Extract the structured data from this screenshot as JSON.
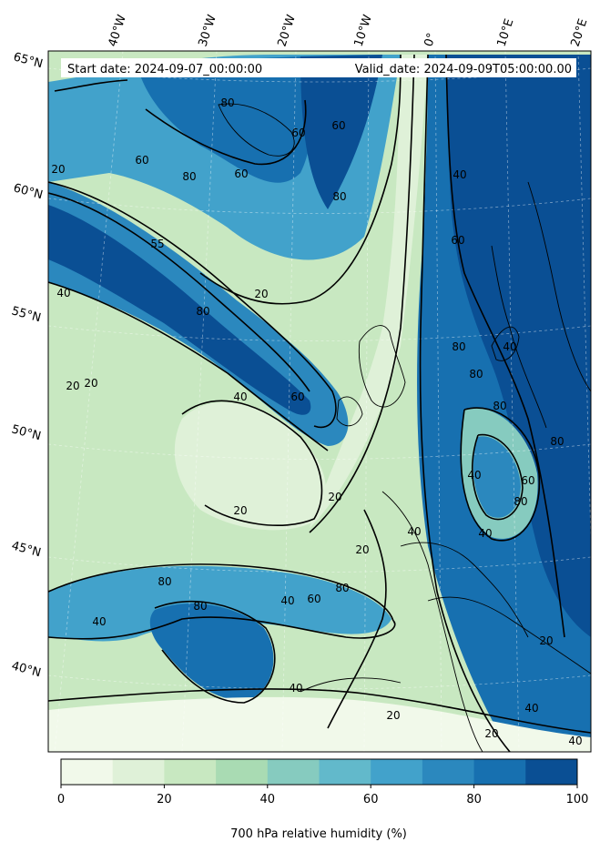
{
  "header": {
    "start_date": "Start date: 2024-09-07_00:00:00",
    "valid_date": "Valid_date: 2024-09-09T05:00:00.00"
  },
  "longitude_labels": [
    "40°W",
    "30°W",
    "20°W",
    "10°W",
    "0°",
    "10°E",
    "20°E"
  ],
  "latitude_labels": [
    "65°N",
    "60°N",
    "55°N",
    "50°N",
    "45°N",
    "40°N"
  ],
  "contour_labels": [
    "20",
    "60",
    "80",
    "60",
    "60",
    "80",
    "60",
    "40",
    "80",
    "60",
    "20",
    "55",
    "40",
    "20",
    "80",
    "60",
    "20",
    "40",
    "20",
    "80",
    "80",
    "40",
    "80",
    "80",
    "80",
    "40",
    "60",
    "20",
    "40",
    "20",
    "40",
    "60",
    "80",
    "80",
    "40",
    "80",
    "40",
    "20",
    "40",
    "20",
    "40",
    "20",
    "40"
  ],
  "colorbar": {
    "label": "700 hPa relative humidity (%)",
    "ticks": [
      "0",
      "20",
      "40",
      "60",
      "80",
      "100"
    ],
    "colors": [
      "#f7fcf0",
      "#e0f3db",
      "#ccebc5",
      "#a8ddb5",
      "#7bccc4",
      "#4eb3d3",
      "#2b8cbe",
      "#0868ac",
      "#1f78b4",
      "#08589e"
    ]
  },
  "palette": {
    "level_0_10": "#f1f9ea",
    "level_10_20": "#dff1d8",
    "level_20_30": "#c8e8c1",
    "level_30_40": "#a9dbb3",
    "level_40_50": "#86cbbf",
    "level_50_60": "#62b9cb",
    "level_60_70": "#42a2cb",
    "level_70_80": "#2b88be",
    "level_80_90": "#1770b0",
    "level_90_100": "#0a4f94"
  }
}
